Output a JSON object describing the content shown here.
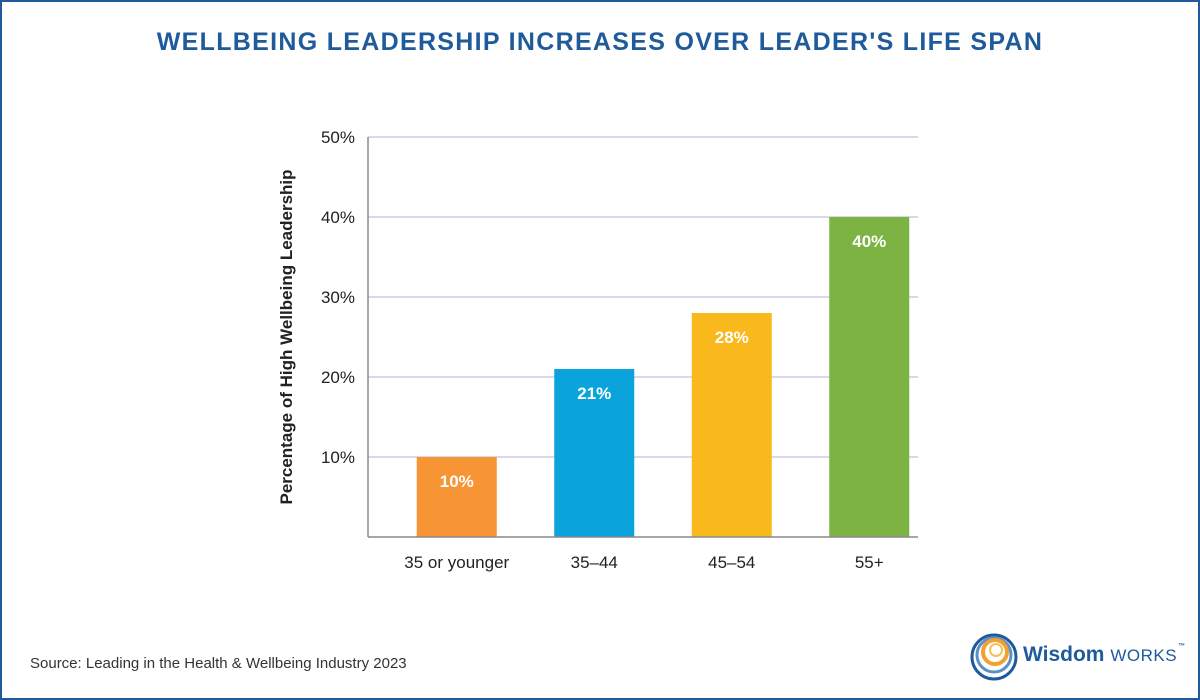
{
  "title": "WELLBEING LEADERSHIP INCREASES OVER LEADER'S LIFE SPAN",
  "source": "Source: Leading in the Health & Wellbeing Industry 2023",
  "logo": {
    "name_bold": "Wisdom",
    "name_caps": "WORKS",
    "trademark": "™"
  },
  "colors": {
    "title": "#1f5a9a",
    "frame": "#1f5a9a",
    "grid": "#c8cde0",
    "bars": [
      "#f79433",
      "#0ba3dc",
      "#f9b81b",
      "#7cb342"
    ]
  },
  "chart_data": {
    "type": "bar",
    "title": "WELLBEING LEADERSHIP INCREASES OVER LEADER'S LIFE SPAN",
    "xlabel": "",
    "ylabel": "Percentage of High Wellbeing Leadership",
    "categories": [
      "35 or younger",
      "35–44",
      "45–54",
      "55+"
    ],
    "values": [
      10,
      21,
      28,
      40
    ],
    "data_labels": [
      "10%",
      "21%",
      "28%",
      "40%"
    ],
    "ylim": [
      0,
      50
    ],
    "yticks": [
      10,
      20,
      30,
      40,
      50
    ],
    "ytick_labels": [
      "10%",
      "20%",
      "30%",
      "40%",
      "50%"
    ],
    "grid": true,
    "legend": "none"
  }
}
